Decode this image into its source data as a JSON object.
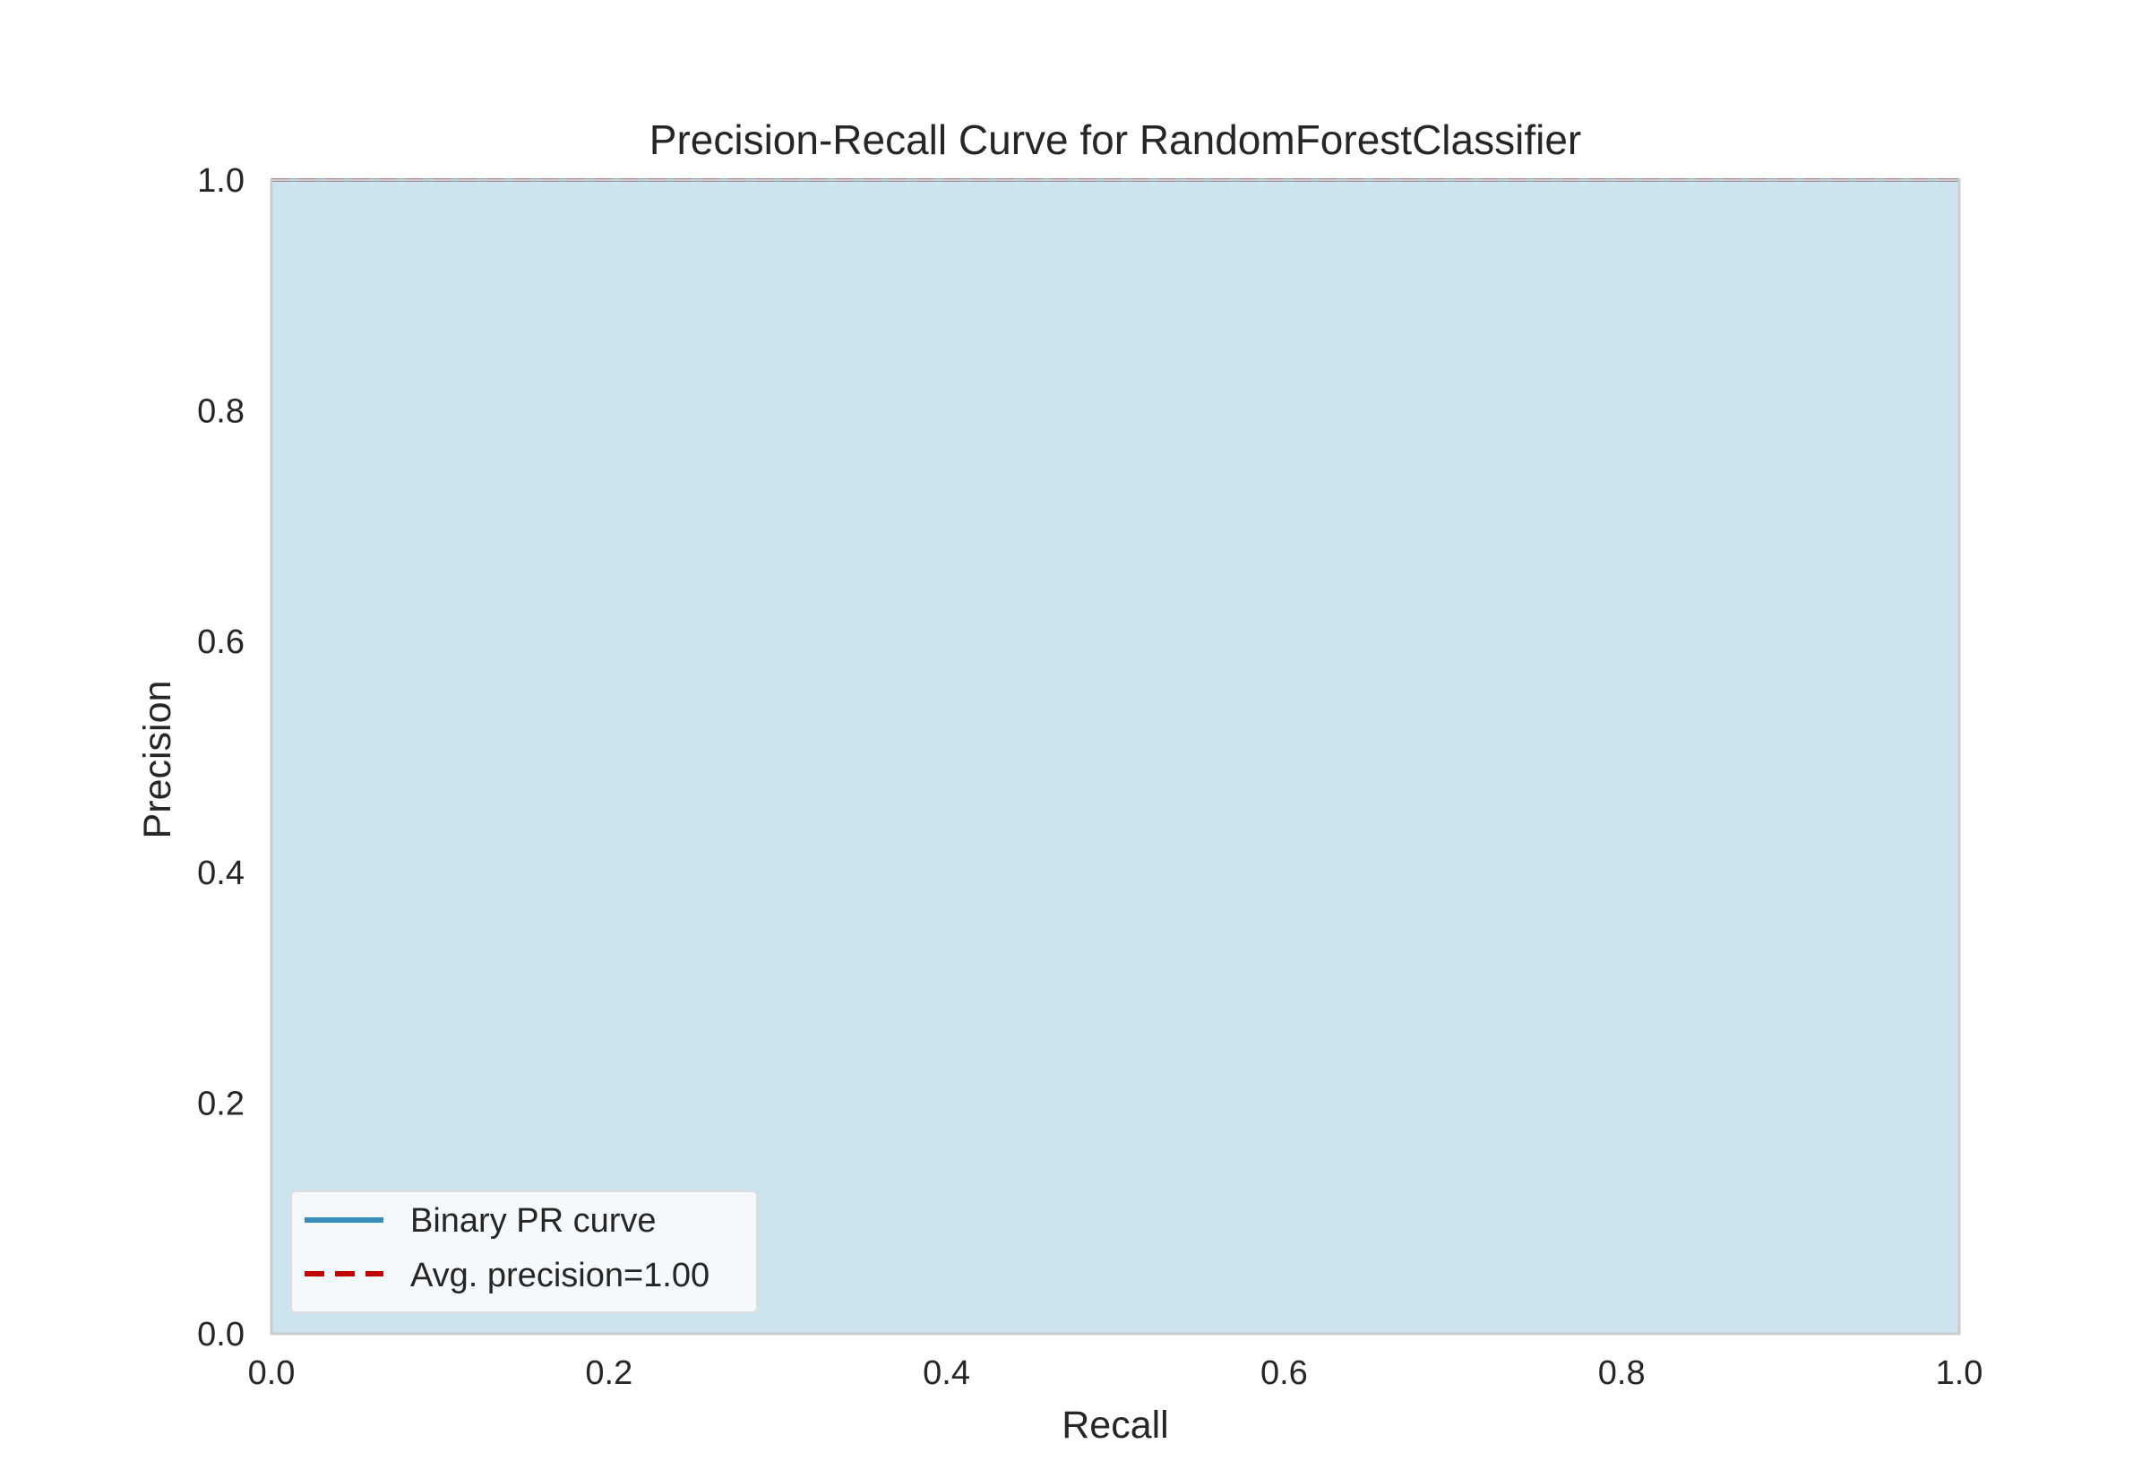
{
  "chart_data": {
    "type": "area",
    "title": "Precision-Recall Curve for RandomForestClassifier",
    "xlabel": "Recall",
    "ylabel": "Precision",
    "xlim": [
      0.0,
      1.0
    ],
    "ylim": [
      0.0,
      1.0
    ],
    "xticks": [
      "0.0",
      "0.2",
      "0.4",
      "0.6",
      "0.8",
      "1.0"
    ],
    "yticks": [
      "0.0",
      "0.2",
      "0.4",
      "0.6",
      "0.8",
      "1.0"
    ],
    "grid": false,
    "legend_position": "lower-left",
    "series": [
      {
        "name": "Binary PR curve",
        "style": "solid",
        "color": "#3a8dba",
        "fill_color": "#cde3ee",
        "x": [
          0.0,
          1.0
        ],
        "y": [
          1.0,
          1.0
        ]
      },
      {
        "name": "Avg. precision=1.00",
        "style": "dashed",
        "color": "#c00000",
        "x": [
          0.0,
          1.0
        ],
        "y": [
          1.0,
          1.0
        ]
      }
    ]
  }
}
